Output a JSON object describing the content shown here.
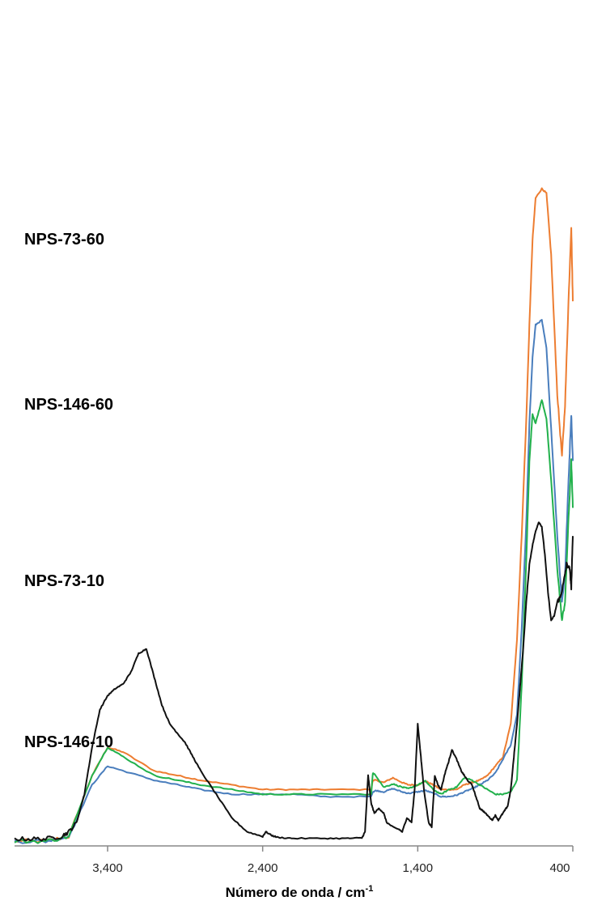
{
  "chart_data": {
    "type": "line",
    "title": "",
    "xlabel": "Número de onda / cm",
    "xlabel_sup": "-1",
    "ylabel": "",
    "x_reversed": true,
    "xlim": [
      4000,
      400
    ],
    "xticks": [
      {
        "value": 3400,
        "label": "3,400"
      },
      {
        "value": 2400,
        "label": "2,400"
      },
      {
        "value": 1400,
        "label": "1,400"
      },
      {
        "value": 400,
        "label": "400"
      }
    ],
    "grid": false,
    "legend": "none",
    "series": [
      {
        "name": "NPS-73-60",
        "color": "#ed7d31",
        "x": [
          4000,
          3800,
          3650,
          3500,
          3400,
          3300,
          3100,
          2950,
          2800,
          2600,
          2400,
          2200,
          2000,
          1700,
          1690,
          1670,
          1620,
          1560,
          1500,
          1460,
          1400,
          1350,
          1300,
          1250,
          1200,
          1150,
          1100,
          1050,
          1000,
          950,
          900,
          850,
          800,
          760,
          730,
          700,
          680,
          660,
          640,
          600,
          570,
          540,
          500,
          470,
          450,
          430,
          410,
          400
        ],
        "y": [
          3.5,
          3.5,
          3.6,
          4.9,
          5.5,
          5.4,
          5.0,
          4.9,
          4.8,
          4.7,
          4.6,
          4.6,
          4.6,
          4.6,
          4.8,
          4.8,
          4.75,
          4.85,
          4.75,
          4.7,
          4.7,
          4.78,
          4.7,
          4.6,
          4.6,
          4.6,
          4.7,
          4.75,
          4.8,
          4.9,
          5.1,
          5.3,
          6.0,
          7.8,
          10.0,
          12.5,
          14.5,
          16.3,
          17.2,
          17.4,
          17.3,
          16.0,
          13.0,
          11.7,
          12.8,
          14.8,
          16.6,
          15.0
        ]
      },
      {
        "name": "NPS-146-60",
        "color": "#4a7ebd",
        "x": [
          4000,
          3800,
          3650,
          3500,
          3400,
          3300,
          3100,
          2950,
          2800,
          2600,
          2400,
          2200,
          2000,
          1700,
          1690,
          1670,
          1620,
          1560,
          1500,
          1460,
          1400,
          1350,
          1300,
          1250,
          1200,
          1150,
          1100,
          1050,
          1000,
          950,
          900,
          850,
          800,
          760,
          730,
          700,
          680,
          660,
          640,
          600,
          570,
          540,
          500,
          470,
          450,
          430,
          410,
          400
        ],
        "y": [
          3.5,
          3.5,
          3.6,
          4.7,
          5.1,
          5.0,
          4.8,
          4.7,
          4.6,
          4.5,
          4.5,
          4.5,
          4.45,
          4.45,
          4.55,
          4.58,
          4.55,
          4.62,
          4.55,
          4.52,
          4.55,
          4.58,
          4.52,
          4.45,
          4.45,
          4.48,
          4.55,
          4.62,
          4.7,
          4.8,
          4.95,
          5.25,
          5.55,
          6.2,
          8.0,
          10.3,
          12.4,
          13.8,
          14.5,
          14.6,
          14.0,
          12.3,
          10.0,
          8.6,
          9.2,
          11.0,
          12.6,
          11.6
        ]
      },
      {
        "name": "NPS-73-10",
        "color": "#22b14c",
        "x": [
          4000,
          3800,
          3650,
          3500,
          3400,
          3300,
          3100,
          2950,
          2800,
          2600,
          2400,
          2200,
          2000,
          1700,
          1690,
          1670,
          1620,
          1560,
          1500,
          1460,
          1400,
          1350,
          1300,
          1250,
          1200,
          1150,
          1100,
          1050,
          1000,
          950,
          900,
          850,
          800,
          760,
          730,
          700,
          680,
          660,
          640,
          600,
          570,
          540,
          500,
          470,
          450,
          430,
          410,
          400
        ],
        "y": [
          3.5,
          3.5,
          3.6,
          4.9,
          5.5,
          5.3,
          4.9,
          4.8,
          4.7,
          4.6,
          4.5,
          4.5,
          4.5,
          4.5,
          4.95,
          4.9,
          4.65,
          4.72,
          4.65,
          4.62,
          4.7,
          4.78,
          4.6,
          4.5,
          4.6,
          4.65,
          4.85,
          4.8,
          4.7,
          4.6,
          4.5,
          4.5,
          4.55,
          4.8,
          6.8,
          9.5,
          11.6,
          12.6,
          12.4,
          12.9,
          12.5,
          11.2,
          9.3,
          8.2,
          8.6,
          10.2,
          11.6,
          10.6
        ]
      },
      {
        "name": "NPS-146-10",
        "color": "#111111",
        "x": [
          4000,
          3900,
          3800,
          3700,
          3650,
          3600,
          3550,
          3500,
          3450,
          3400,
          3350,
          3300,
          3250,
          3200,
          3150,
          3100,
          3050,
          3000,
          2950,
          2900,
          2850,
          2800,
          2700,
          2600,
          2500,
          2400,
          2380,
          2340,
          2300,
          2200,
          2000,
          1850,
          1760,
          1740,
          1720,
          1700,
          1680,
          1650,
          1620,
          1600,
          1560,
          1520,
          1500,
          1470,
          1440,
          1420,
          1400,
          1380,
          1360,
          1330,
          1310,
          1290,
          1270,
          1250,
          1220,
          1200,
          1180,
          1150,
          1120,
          1100,
          1080,
          1050,
          1020,
          1000,
          980,
          950,
          920,
          900,
          880,
          860,
          840,
          820,
          800,
          780,
          760,
          740,
          720,
          700,
          680,
          660,
          640,
          620,
          600,
          580,
          560,
          540,
          520,
          500,
          480,
          460,
          440,
          420,
          410,
          400
        ],
        "y": [
          3.55,
          3.55,
          3.55,
          3.6,
          3.7,
          3.9,
          4.5,
          5.5,
          6.3,
          6.6,
          6.75,
          6.85,
          7.1,
          7.5,
          7.6,
          7.0,
          6.4,
          6.0,
          5.8,
          5.6,
          5.3,
          5.0,
          4.5,
          4.0,
          3.7,
          3.6,
          3.7,
          3.62,
          3.58,
          3.56,
          3.56,
          3.56,
          3.57,
          3.7,
          4.9,
          4.3,
          4.1,
          4.2,
          4.1,
          3.9,
          3.8,
          3.75,
          3.7,
          4.0,
          3.9,
          4.6,
          6.0,
          5.3,
          4.6,
          3.9,
          3.8,
          4.9,
          4.7,
          4.6,
          5.0,
          5.2,
          5.45,
          5.25,
          5.0,
          4.9,
          4.8,
          4.7,
          4.4,
          4.2,
          4.15,
          4.05,
          3.95,
          4.05,
          3.95,
          4.05,
          4.15,
          4.25,
          4.6,
          5.3,
          6.0,
          6.8,
          7.6,
          8.6,
          9.4,
          9.8,
          10.1,
          10.3,
          10.2,
          9.6,
          8.8,
          8.2,
          8.3,
          8.6,
          8.7,
          9.0,
          9.4,
          9.3,
          8.9,
          10.0
        ]
      }
    ]
  }
}
